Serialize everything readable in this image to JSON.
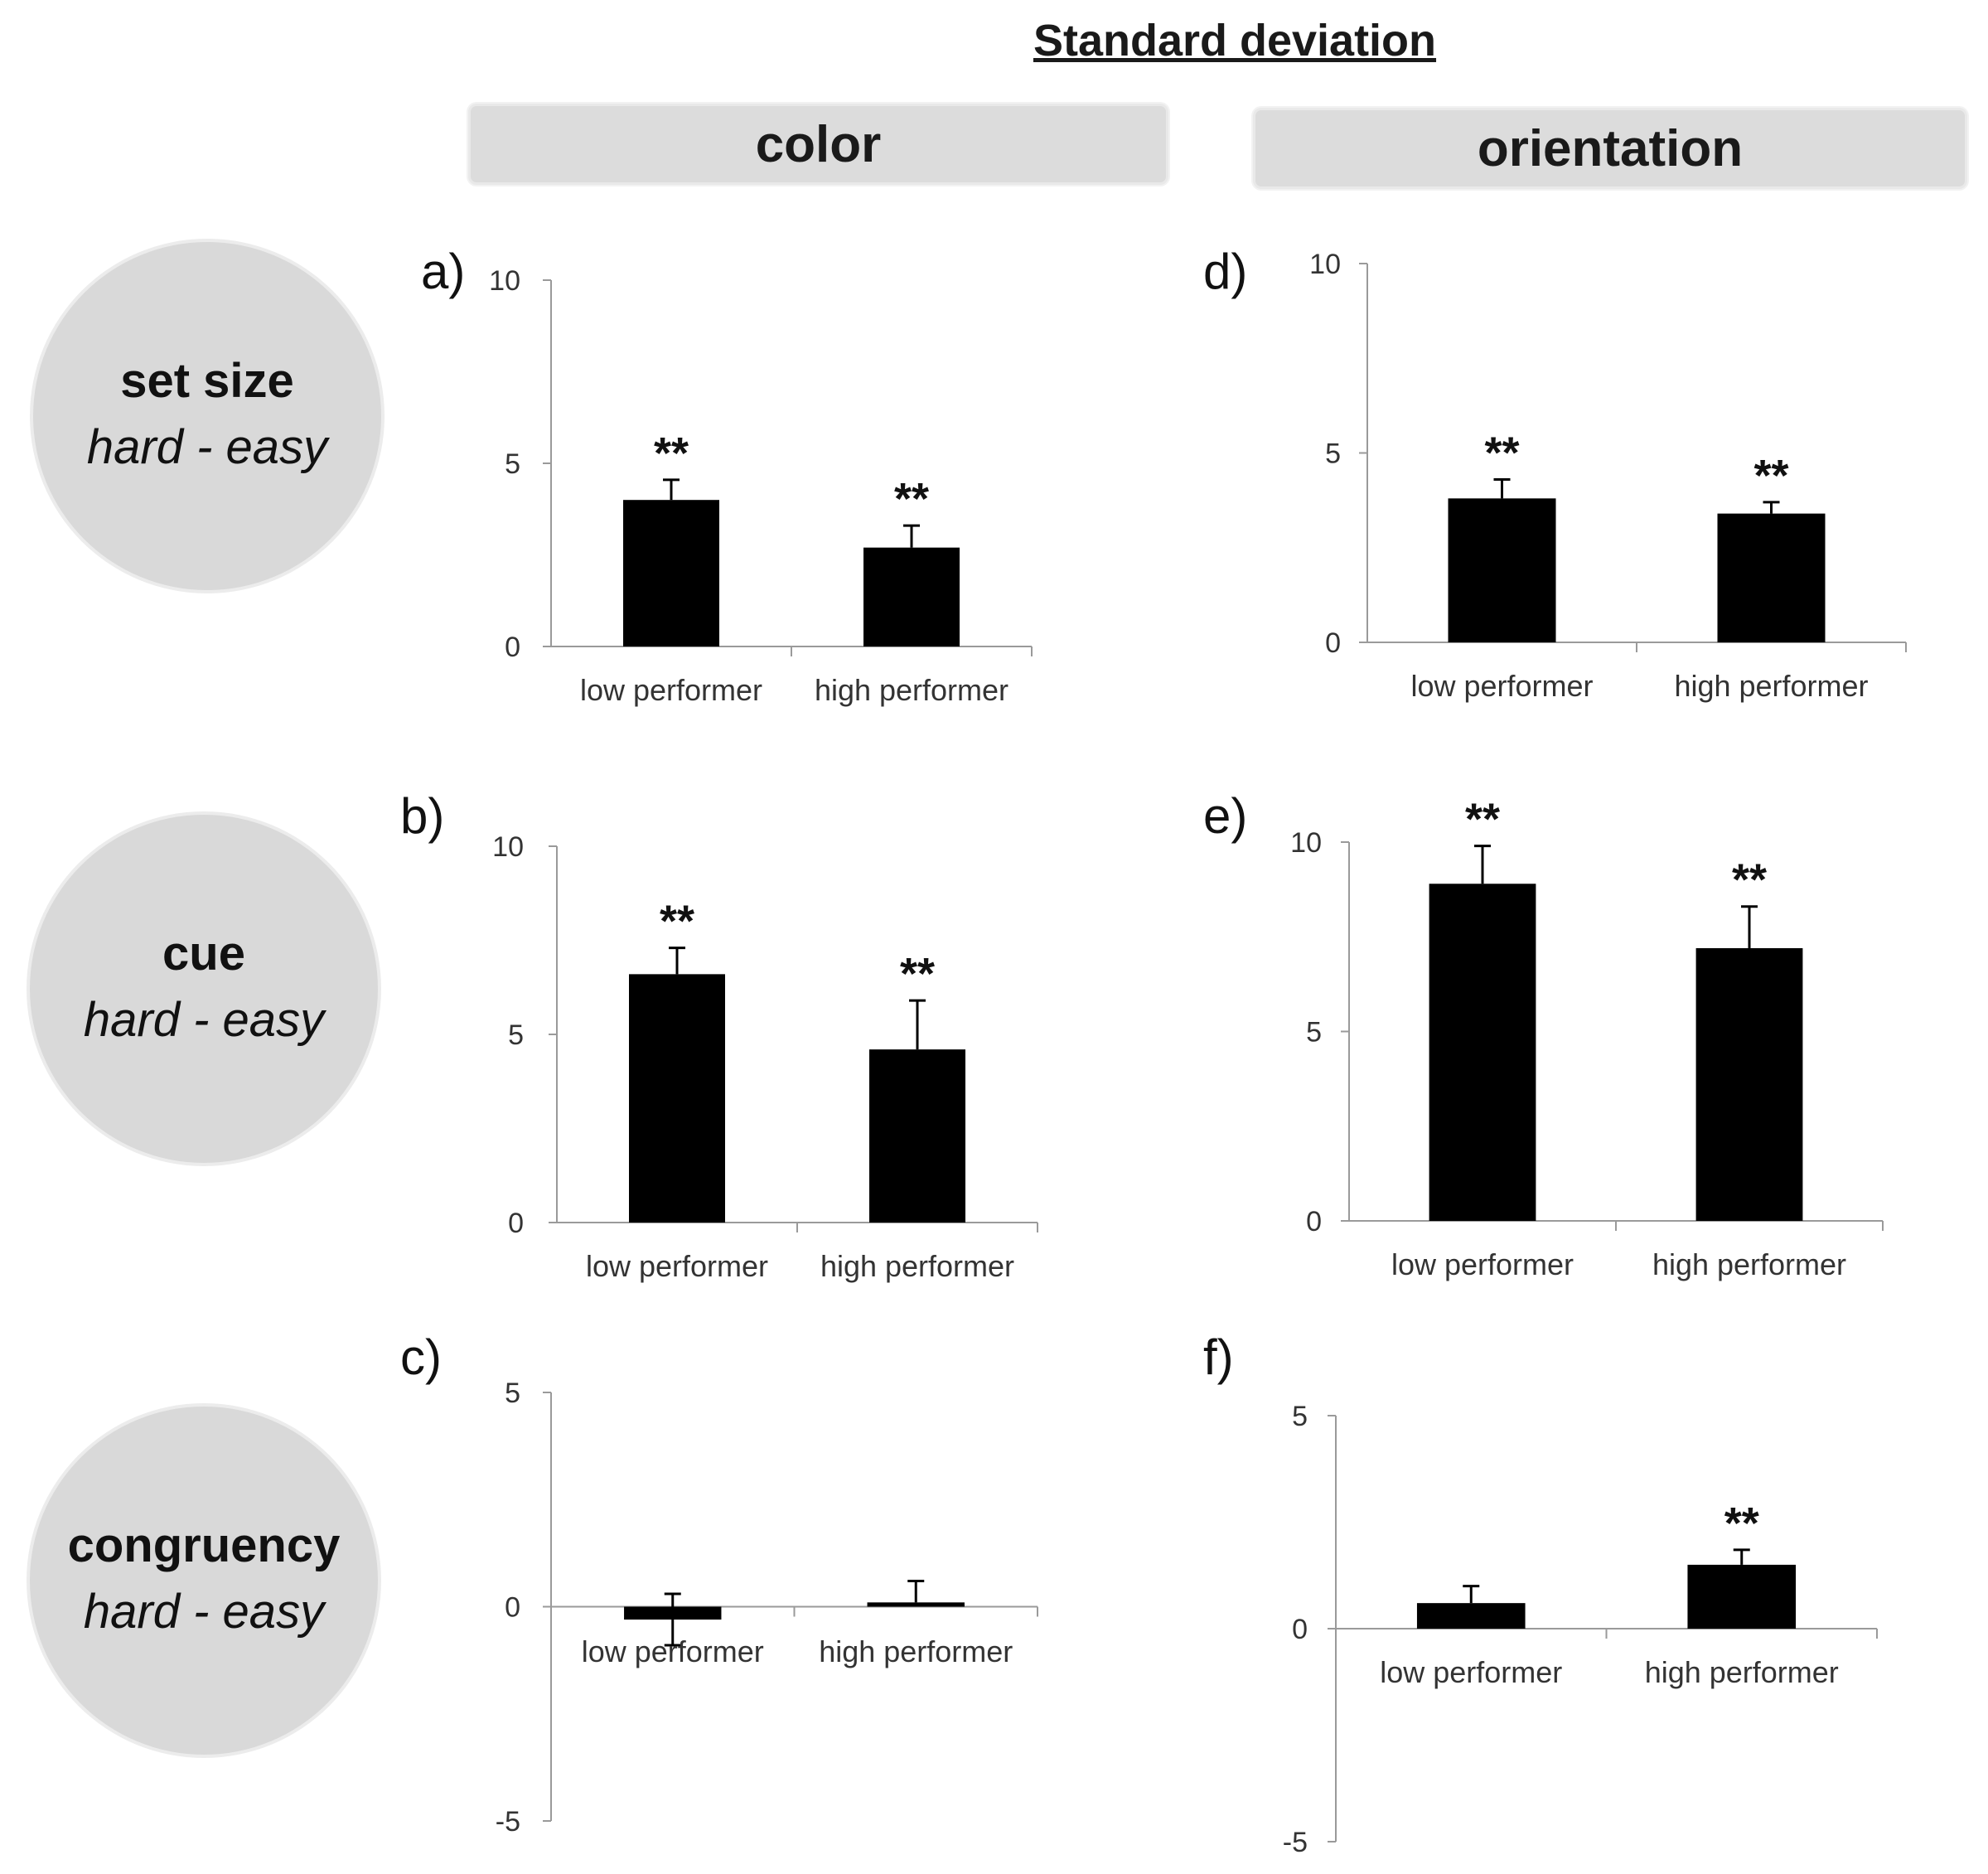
{
  "title": "Standard deviation",
  "columns": [
    "color",
    "orientation"
  ],
  "rows": [
    {
      "title": "set size",
      "subtitle": "hard - easy"
    },
    {
      "title": "cue",
      "subtitle": "hard - easy"
    },
    {
      "title": "congruency",
      "subtitle": "hard - easy"
    }
  ],
  "chart_data": [
    {
      "panel": "a)",
      "type": "bar",
      "column": "color",
      "row": "set size",
      "categories": [
        "low performer",
        "high performer"
      ],
      "values": [
        4.0,
        2.7
      ],
      "errors": [
        0.55,
        0.6
      ],
      "significance": [
        "**",
        "**"
      ],
      "ylim": [
        0,
        10
      ],
      "yticks": [
        "0",
        "5",
        "10"
      ]
    },
    {
      "panel": "b)",
      "type": "bar",
      "column": "color",
      "row": "cue",
      "categories": [
        "low performer",
        "high performer"
      ],
      "values": [
        6.6,
        4.6
      ],
      "errors": [
        0.7,
        1.3
      ],
      "significance": [
        "**",
        "**"
      ],
      "ylim": [
        0,
        10
      ],
      "yticks": [
        "0",
        "5",
        "10"
      ]
    },
    {
      "panel": "c)",
      "type": "bar",
      "column": "color",
      "row": "congruency",
      "categories": [
        "low performer",
        "high performer"
      ],
      "values": [
        -0.3,
        0.1
      ],
      "errors": [
        0.6,
        0.5
      ],
      "significance": [
        "",
        ""
      ],
      "ylim": [
        -5,
        5
      ],
      "yticks": [
        "-5",
        "0",
        "5"
      ]
    },
    {
      "panel": "d)",
      "type": "bar",
      "column": "orientation",
      "row": "set size",
      "categories": [
        "low performer",
        "high performer"
      ],
      "values": [
        3.8,
        3.4
      ],
      "errors": [
        0.5,
        0.3
      ],
      "significance": [
        "**",
        "**"
      ],
      "ylim": [
        0,
        10
      ],
      "yticks": [
        "0",
        "5",
        "10"
      ]
    },
    {
      "panel": "e)",
      "type": "bar",
      "column": "orientation",
      "row": "cue",
      "categories": [
        "low performer",
        "high performer"
      ],
      "values": [
        8.9,
        7.2
      ],
      "errors": [
        1.0,
        1.1
      ],
      "significance": [
        "**",
        "**"
      ],
      "ylim": [
        0,
        10
      ],
      "yticks": [
        "0",
        "5",
        "10"
      ]
    },
    {
      "panel": "f)",
      "type": "bar",
      "column": "orientation",
      "row": "congruency",
      "categories": [
        "low performer",
        "high performer"
      ],
      "values": [
        0.6,
        1.5
      ],
      "errors": [
        0.4,
        0.35
      ],
      "significance": [
        "",
        "**"
      ],
      "ylim": [
        -5,
        5
      ],
      "yticks": [
        "-5",
        "0",
        "5"
      ]
    }
  ]
}
